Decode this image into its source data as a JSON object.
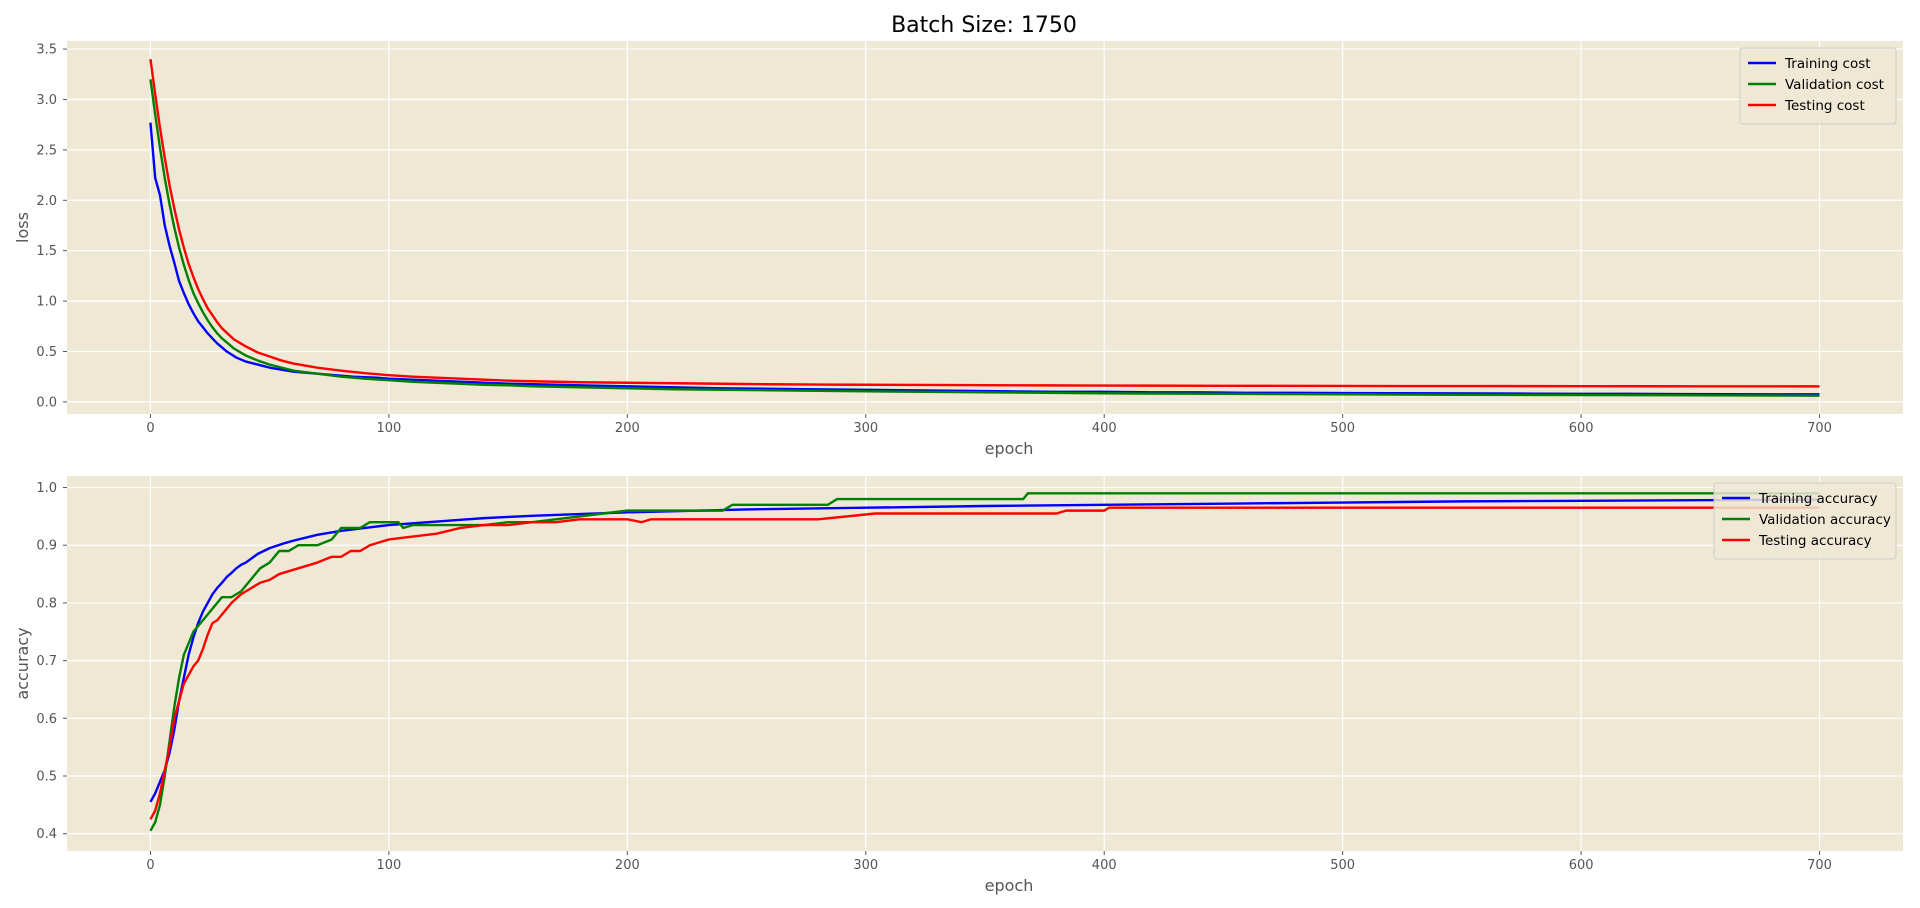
{
  "figure_title": "Batch Size: 1750",
  "colors": {
    "background": "#ffffff",
    "axes_bg": "#eee8d5",
    "grid": "#ffffff",
    "tick_text": "#555555",
    "training": "#0000ff",
    "validation": "#008000",
    "testing": "#ff0000"
  },
  "chart_data": [
    {
      "type": "line",
      "title": "",
      "xlabel": "epoch",
      "ylabel": "loss",
      "xlim": [
        -35,
        735
      ],
      "ylim": [
        -0.12,
        3.58
      ],
      "xticks": [
        0,
        100,
        200,
        300,
        400,
        500,
        600,
        700
      ],
      "xtick_labels": [
        "0",
        "100",
        "200",
        "300",
        "400",
        "500",
        "600",
        "700"
      ],
      "yticks": [
        0.0,
        0.5,
        1.0,
        1.5,
        2.0,
        2.5,
        3.0,
        3.5
      ],
      "ytick_labels": [
        "0.0",
        "0.5",
        "1.0",
        "1.5",
        "2.0",
        "2.5",
        "3.0",
        "3.5"
      ],
      "grid": true,
      "legend_position": "top-right",
      "series": [
        {
          "name": "Training cost",
          "color": "#0000ff",
          "x": [
            0,
            2,
            4,
            6,
            8,
            10,
            12,
            14,
            16,
            18,
            20,
            22,
            24,
            26,
            28,
            30,
            32,
            34,
            36,
            38,
            40,
            45,
            50,
            55,
            60,
            65,
            70,
            75,
            80,
            85,
            90,
            95,
            100,
            110,
            120,
            130,
            140,
            150,
            160,
            170,
            180,
            190,
            200,
            220,
            240,
            260,
            280,
            300,
            320,
            340,
            360,
            380,
            400,
            420,
            440,
            460,
            480,
            500,
            520,
            540,
            560,
            580,
            600,
            620,
            640,
            660,
            680,
            700
          ],
          "y": [
            2.77,
            2.22,
            2.05,
            1.75,
            1.55,
            1.38,
            1.2,
            1.08,
            0.97,
            0.88,
            0.8,
            0.74,
            0.68,
            0.63,
            0.58,
            0.54,
            0.5,
            0.47,
            0.44,
            0.42,
            0.4,
            0.37,
            0.34,
            0.32,
            0.3,
            0.29,
            0.28,
            0.27,
            0.26,
            0.25,
            0.245,
            0.24,
            0.23,
            0.22,
            0.21,
            0.2,
            0.19,
            0.18,
            0.175,
            0.17,
            0.165,
            0.16,
            0.155,
            0.145,
            0.135,
            0.13,
            0.125,
            0.12,
            0.115,
            0.11,
            0.105,
            0.1,
            0.1,
            0.095,
            0.095,
            0.09,
            0.09,
            0.088,
            0.086,
            0.085,
            0.084,
            0.082,
            0.08,
            0.08,
            0.078,
            0.076,
            0.075,
            0.075
          ]
        },
        {
          "name": "Validation cost",
          "color": "#008000",
          "x": [
            0,
            2,
            4,
            6,
            8,
            10,
            12,
            14,
            16,
            18,
            20,
            22,
            24,
            26,
            28,
            30,
            35,
            40,
            45,
            50,
            55,
            60,
            70,
            80,
            90,
            100,
            110,
            120,
            130,
            140,
            150,
            160,
            180,
            200,
            220,
            240,
            260,
            280,
            300,
            325,
            350,
            375,
            400,
            450,
            500,
            550,
            600,
            650,
            700
          ],
          "y": [
            3.2,
            2.85,
            2.52,
            2.22,
            1.96,
            1.73,
            1.53,
            1.36,
            1.21,
            1.08,
            0.98,
            0.89,
            0.81,
            0.74,
            0.68,
            0.63,
            0.53,
            0.46,
            0.41,
            0.37,
            0.34,
            0.31,
            0.28,
            0.25,
            0.23,
            0.215,
            0.2,
            0.19,
            0.18,
            0.17,
            0.165,
            0.155,
            0.145,
            0.135,
            0.125,
            0.12,
            0.115,
            0.11,
            0.105,
            0.1,
            0.095,
            0.09,
            0.085,
            0.08,
            0.075,
            0.07,
            0.068,
            0.065,
            0.062
          ]
        },
        {
          "name": "Testing cost",
          "color": "#ff0000",
          "x": [
            0,
            2,
            4,
            6,
            8,
            10,
            12,
            14,
            16,
            18,
            20,
            22,
            24,
            26,
            28,
            30,
            35,
            40,
            45,
            50,
            55,
            60,
            70,
            80,
            90,
            100,
            110,
            120,
            130,
            140,
            150,
            160,
            180,
            200,
            220,
            240,
            260,
            280,
            300,
            325,
            350,
            375,
            400,
            450,
            500,
            550,
            600,
            650,
            700
          ],
          "y": [
            3.4,
            3.05,
            2.72,
            2.42,
            2.15,
            1.92,
            1.71,
            1.53,
            1.37,
            1.24,
            1.12,
            1.02,
            0.93,
            0.86,
            0.79,
            0.73,
            0.62,
            0.55,
            0.49,
            0.45,
            0.41,
            0.38,
            0.34,
            0.31,
            0.285,
            0.265,
            0.25,
            0.24,
            0.23,
            0.22,
            0.21,
            0.205,
            0.195,
            0.19,
            0.185,
            0.18,
            0.175,
            0.172,
            0.17,
            0.168,
            0.166,
            0.164,
            0.162,
            0.16,
            0.158,
            0.157,
            0.156,
            0.155,
            0.154
          ]
        }
      ]
    },
    {
      "type": "line",
      "title": "",
      "xlabel": "epoch",
      "ylabel": "accuracy",
      "xlim": [
        -35,
        735
      ],
      "ylim": [
        0.37,
        1.02
      ],
      "xticks": [
        0,
        100,
        200,
        300,
        400,
        500,
        600,
        700
      ],
      "xtick_labels": [
        "0",
        "100",
        "200",
        "300",
        "400",
        "500",
        "600",
        "700"
      ],
      "yticks": [
        0.4,
        0.5,
        0.6,
        0.7,
        0.8,
        0.9,
        1.0
      ],
      "ytick_labels": [
        "0.4",
        "0.5",
        "0.6",
        "0.7",
        "0.8",
        "0.9",
        "1.0"
      ],
      "grid": true,
      "legend_position": "top-right",
      "series": [
        {
          "name": "Training accuracy",
          "color": "#0000ff",
          "x": [
            0,
            2,
            4,
            6,
            8,
            10,
            12,
            14,
            16,
            18,
            20,
            22,
            24,
            26,
            28,
            30,
            32,
            34,
            36,
            38,
            40,
            45,
            50,
            55,
            60,
            70,
            80,
            90,
            100,
            110,
            120,
            130,
            140,
            150,
            160,
            180,
            200,
            250,
            300,
            350,
            400,
            450,
            500,
            550,
            600,
            650,
            700
          ],
          "y": [
            0.455,
            0.47,
            0.49,
            0.51,
            0.54,
            0.58,
            0.63,
            0.67,
            0.71,
            0.74,
            0.765,
            0.785,
            0.8,
            0.815,
            0.826,
            0.835,
            0.845,
            0.852,
            0.86,
            0.866,
            0.87,
            0.885,
            0.895,
            0.902,
            0.908,
            0.918,
            0.925,
            0.93,
            0.935,
            0.938,
            0.941,
            0.944,
            0.947,
            0.949,
            0.951,
            0.954,
            0.957,
            0.962,
            0.965,
            0.968,
            0.97,
            0.972,
            0.974,
            0.976,
            0.977,
            0.978,
            0.979
          ]
        },
        {
          "name": "Validation accuracy",
          "color": "#008000",
          "x": [
            0,
            2,
            4,
            6,
            8,
            10,
            12,
            14,
            16,
            18,
            20,
            22,
            24,
            26,
            28,
            30,
            34,
            38,
            42,
            46,
            50,
            54,
            58,
            62,
            66,
            70,
            76,
            80,
            84,
            88,
            92,
            96,
            100,
            104,
            106,
            110,
            120,
            130,
            140,
            150,
            160,
            170,
            180,
            190,
            200,
            220,
            240,
            244,
            260,
            284,
            288,
            300,
            320,
            340,
            366,
            368,
            400,
            450,
            500,
            550,
            600,
            650,
            700
          ],
          "y": [
            0.405,
            0.42,
            0.45,
            0.5,
            0.56,
            0.62,
            0.67,
            0.71,
            0.73,
            0.75,
            0.76,
            0.77,
            0.78,
            0.79,
            0.8,
            0.81,
            0.81,
            0.82,
            0.84,
            0.86,
            0.87,
            0.89,
            0.89,
            0.9,
            0.9,
            0.9,
            0.91,
            0.93,
            0.93,
            0.93,
            0.94,
            0.94,
            0.94,
            0.94,
            0.93,
            0.935,
            0.935,
            0.935,
            0.935,
            0.94,
            0.94,
            0.945,
            0.95,
            0.955,
            0.96,
            0.96,
            0.96,
            0.97,
            0.97,
            0.97,
            0.98,
            0.98,
            0.98,
            0.98,
            0.98,
            0.99,
            0.99,
            0.99,
            0.99,
            0.99,
            0.99,
            0.99,
            0.99
          ]
        },
        {
          "name": "Testing accuracy",
          "color": "#ff0000",
          "x": [
            0,
            2,
            4,
            6,
            8,
            10,
            12,
            14,
            16,
            18,
            20,
            22,
            24,
            26,
            28,
            30,
            34,
            38,
            42,
            46,
            50,
            54,
            58,
            62,
            66,
            70,
            76,
            80,
            84,
            88,
            92,
            96,
            100,
            110,
            120,
            130,
            140,
            150,
            160,
            170,
            180,
            190,
            200,
            206,
            210,
            220,
            240,
            260,
            280,
            304,
            320,
            340,
            360,
            380,
            384,
            400,
            402,
            450,
            500,
            550,
            600,
            650,
            700
          ],
          "y": [
            0.425,
            0.44,
            0.47,
            0.51,
            0.55,
            0.6,
            0.63,
            0.66,
            0.675,
            0.69,
            0.7,
            0.72,
            0.745,
            0.765,
            0.77,
            0.78,
            0.8,
            0.815,
            0.825,
            0.835,
            0.84,
            0.85,
            0.855,
            0.86,
            0.865,
            0.87,
            0.88,
            0.88,
            0.89,
            0.89,
            0.9,
            0.905,
            0.91,
            0.915,
            0.92,
            0.93,
            0.935,
            0.935,
            0.94,
            0.94,
            0.945,
            0.945,
            0.945,
            0.94,
            0.945,
            0.945,
            0.945,
            0.945,
            0.945,
            0.955,
            0.955,
            0.955,
            0.955,
            0.955,
            0.96,
            0.96,
            0.965,
            0.965,
            0.965,
            0.965,
            0.965,
            0.965,
            0.965
          ]
        }
      ]
    }
  ]
}
